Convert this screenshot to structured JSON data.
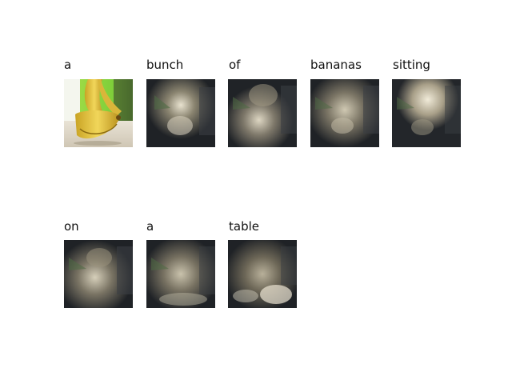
{
  "caption_words": [
    {
      "word": "a",
      "view": "original"
    },
    {
      "word": "bunch",
      "view": "attention"
    },
    {
      "word": "of",
      "view": "attention"
    },
    {
      "word": "bananas",
      "view": "attention"
    },
    {
      "word": "sitting",
      "view": "attention"
    },
    {
      "word": "on",
      "view": "attention"
    },
    {
      "word": "a",
      "view": "attention"
    },
    {
      "word": "table",
      "view": "attention"
    }
  ],
  "colors": {
    "background": "#ffffff",
    "banana_yellow": "#e6c43a",
    "green_wall": "#7fcf3a",
    "dark_room": "#2a2c30",
    "table_top": "#d8d2c4"
  }
}
